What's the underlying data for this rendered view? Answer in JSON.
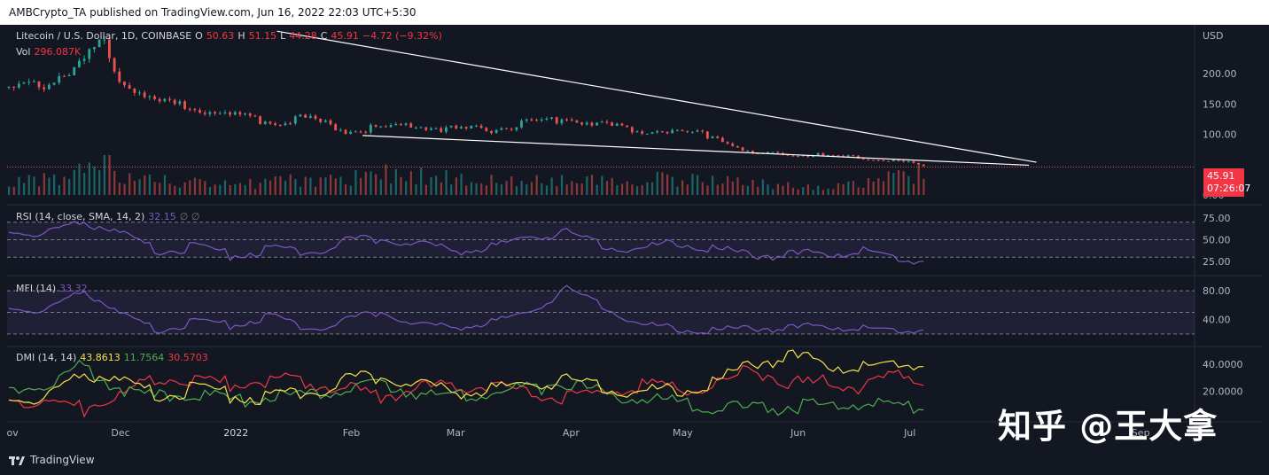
{
  "header": {
    "publisher_line": "AMBCrypto_TA published on TradingView.com, Jun 16, 2022 22:03 UTC+5:30"
  },
  "footer": {
    "brand": "TradingView"
  },
  "watermark": "知乎 @王大拿",
  "colors": {
    "background": "#131722",
    "up": "#26a69a",
    "down": "#ef5350",
    "rsi": "#7e57c2",
    "dmi_plus": "#4caf50",
    "dmi_minus": "#f23645",
    "adx": "#f5e148",
    "trendline": "#ffffff"
  },
  "price_legend": {
    "symbol": "Litecoin / U.S. Dollar, 1D, COINBASE",
    "open_label": "O",
    "open": "50.63",
    "high_label": "H",
    "high": "51.15",
    "low_label": "L",
    "low": "44.28",
    "close_label": "C",
    "close": "45.91",
    "change": "−4.72 (−9.32%)",
    "vol_label": "Vol",
    "vol": "296.087K"
  },
  "current_price_tag": {
    "price": "45.91",
    "countdown": "07:26:07"
  },
  "rsi_legend": {
    "label": "RSI (14, close, SMA, 14, 2)",
    "value": "32.15",
    "extra": "∅ ∅"
  },
  "mfi_legend": {
    "label": "MFI (14)",
    "value": "33.32"
  },
  "dmi_legend": {
    "label": "DMI (14, 14)",
    "adx": "43.8613",
    "plus": "11.7564",
    "minus": "30.5703"
  },
  "chart_data": {
    "type": "candlestick",
    "currency": "USD",
    "price_axis_ticks": [
      "200.00",
      "150.00",
      "100.00",
      "0.00"
    ],
    "price_axis_top_label": "USD",
    "ylim": [
      0,
      260
    ],
    "x_tick_labels": [
      "Nov",
      "Dec",
      "2022",
      "Feb",
      "Mar",
      "Apr",
      "May",
      "Jun",
      "Jul",
      "Sep"
    ],
    "x_tick_days": [
      0,
      30,
      61,
      92,
      120,
      151,
      181,
      212,
      242,
      304
    ],
    "start_date": "2021-10-10",
    "price_series": {
      "name": "LTC/USD",
      "days": [
        0,
        10,
        20,
        25,
        30,
        40,
        50,
        60,
        70,
        80,
        90,
        100,
        110,
        120,
        130,
        140,
        150,
        160,
        170,
        180,
        190,
        200,
        210,
        220,
        230,
        240,
        247
      ],
      "close": [
        178,
        190,
        225,
        265,
        200,
        155,
        150,
        135,
        125,
        130,
        110,
        115,
        117,
        110,
        112,
        122,
        130,
        118,
        110,
        108,
        100,
        68,
        70,
        66,
        62,
        56,
        46
      ]
    },
    "volume": {
      "days": [
        0,
        15,
        25,
        30,
        60,
        105,
        125,
        180,
        215,
        228,
        245,
        247
      ],
      "values": [
        30,
        45,
        100,
        40,
        25,
        55,
        35,
        40,
        20,
        25,
        60,
        30
      ]
    },
    "trendlines": [
      {
        "from": {
          "day": 72,
          "price": 270
        },
        "to": {
          "day": 276,
          "price": 54
        }
      },
      {
        "from": {
          "day": 95,
          "price": 98
        },
        "to": {
          "day": 274,
          "price": 49
        }
      }
    ],
    "rsi": {
      "axis_ticks": [
        "75.00",
        "50.00",
        "25.00"
      ],
      "ylim": [
        15,
        85
      ],
      "bands": [
        70,
        50,
        30
      ],
      "days": [
        0,
        10,
        20,
        30,
        40,
        50,
        60,
        70,
        80,
        90,
        100,
        110,
        120,
        130,
        140,
        150,
        160,
        170,
        180,
        190,
        200,
        210,
        220,
        230,
        240,
        245,
        247
      ],
      "values": [
        65,
        60,
        75,
        60,
        40,
        45,
        35,
        42,
        38,
        50,
        55,
        48,
        40,
        45,
        58,
        60,
        45,
        42,
        50,
        42,
        36,
        35,
        38,
        40,
        28,
        30,
        32
      ]
    },
    "mfi": {
      "axis_ticks": [
        "80.00",
        "40.00"
      ],
      "ylim": [
        10,
        95
      ],
      "bands": [
        80,
        50,
        20
      ],
      "days": [
        0,
        10,
        20,
        30,
        40,
        50,
        60,
        70,
        80,
        90,
        100,
        110,
        120,
        130,
        140,
        150,
        160,
        170,
        180,
        190,
        200,
        210,
        220,
        230,
        240,
        245,
        247
      ],
      "values": [
        62,
        55,
        85,
        50,
        28,
        40,
        35,
        48,
        30,
        40,
        55,
        35,
        32,
        40,
        55,
        85,
        60,
        35,
        30,
        28,
        32,
        30,
        35,
        30,
        25,
        30,
        33
      ]
    },
    "dmi": {
      "axis_ticks": [
        "40.0000",
        "20.0000"
      ],
      "ylim": [
        0,
        50
      ],
      "adx": {
        "days": [
          0,
          10,
          20,
          30,
          40,
          50,
          60,
          70,
          80,
          90,
          100,
          110,
          120,
          130,
          140,
          150,
          160,
          170,
          180,
          190,
          200,
          210,
          220,
          230,
          240,
          247
        ],
        "values": [
          20,
          18,
          38,
          30,
          20,
          25,
          20,
          18,
          22,
          30,
          35,
          28,
          22,
          25,
          30,
          30,
          25,
          22,
          24,
          30,
          45,
          48,
          44,
          40,
          42,
          44
        ]
      },
      "plus": {
        "days": [
          0,
          10,
          20,
          30,
          40,
          50,
          60,
          70,
          80,
          90,
          100,
          110,
          120,
          130,
          140,
          150,
          160,
          170,
          180,
          190,
          200,
          210,
          220,
          230,
          240,
          247
        ],
        "values": [
          22,
          28,
          42,
          25,
          18,
          22,
          15,
          20,
          18,
          25,
          28,
          22,
          18,
          22,
          25,
          30,
          20,
          18,
          15,
          12,
          10,
          12,
          11,
          14,
          10,
          12
        ]
      },
      "minus": {
        "days": [
          0,
          10,
          20,
          30,
          40,
          50,
          60,
          70,
          80,
          90,
          100,
          110,
          120,
          130,
          140,
          150,
          160,
          170,
          180,
          190,
          200,
          210,
          220,
          230,
          240,
          247
        ],
        "values": [
          18,
          15,
          10,
          20,
          35,
          30,
          28,
          32,
          30,
          25,
          20,
          25,
          28,
          25,
          22,
          18,
          22,
          28,
          25,
          28,
          40,
          28,
          30,
          25,
          38,
          30
        ]
      }
    }
  }
}
